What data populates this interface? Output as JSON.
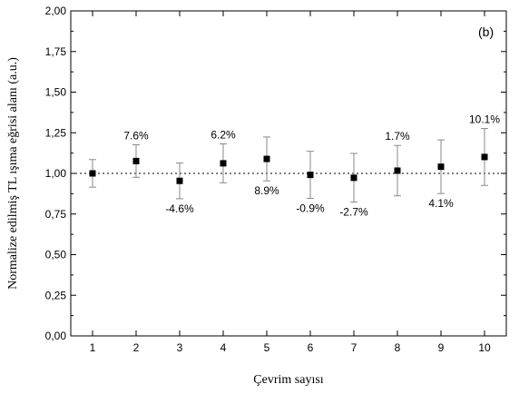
{
  "chart_data": {
    "type": "scatter",
    "panel_label": "(b)",
    "xlabel": "Çevrim sayısı",
    "ylabel": "Normalize edilmiş TL ışıma eğrisi alanı (a.u.)",
    "xlim": [
      0.5,
      10.5
    ],
    "ylim": [
      0.0,
      2.0
    ],
    "x_ticks": [
      "1",
      "2",
      "3",
      "4",
      "5",
      "6",
      "7",
      "8",
      "9",
      "10"
    ],
    "y_ticks": [
      "0,00",
      "0,25",
      "0,50",
      "0,75",
      "1,00",
      "1,25",
      "1,50",
      "1,75",
      "2,00"
    ],
    "reference_line": 1.0,
    "grid": false,
    "points": [
      {
        "x": 1,
        "y": 1.0,
        "err": 0.085,
        "label": ""
      },
      {
        "x": 2,
        "y": 1.076,
        "err": 0.1,
        "label": "7.6%"
      },
      {
        "x": 3,
        "y": 0.954,
        "err": 0.11,
        "label": "-4.6%"
      },
      {
        "x": 4,
        "y": 1.062,
        "err": 0.12,
        "label": "6.2%"
      },
      {
        "x": 5,
        "y": 1.089,
        "err": 0.135,
        "label": "8.9%"
      },
      {
        "x": 6,
        "y": 0.991,
        "err": 0.145,
        "label": "-0.9%"
      },
      {
        "x": 7,
        "y": 0.973,
        "err": 0.15,
        "label": "-2.7%"
      },
      {
        "x": 8,
        "y": 1.017,
        "err": 0.155,
        "label": "1.7%"
      },
      {
        "x": 9,
        "y": 1.041,
        "err": 0.165,
        "label": "4.1%"
      },
      {
        "x": 10,
        "y": 1.101,
        "err": 0.175,
        "label": "10.1%"
      }
    ]
  }
}
